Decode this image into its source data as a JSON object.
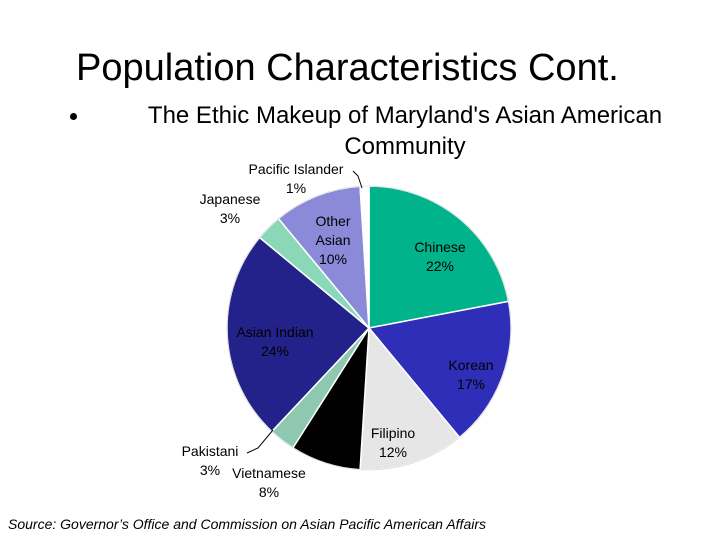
{
  "slide": {
    "title": "Population Characteristics Cont.",
    "bullet": "The Ethic Makeup of Maryland's Asian American Community",
    "source": "Source: Governor’s Office and Commission on Asian Pacific American Affairs"
  },
  "chart_data": {
    "type": "pie",
    "title": "",
    "start_angle_deg": 0,
    "direction": "clockwise",
    "slices": [
      {
        "name": "Chinese",
        "value": 22,
        "label_pct": "22%",
        "color": "#00b38a",
        "label_color": "#000000"
      },
      {
        "name": "Korean",
        "value": 17,
        "label_pct": "17%",
        "color": "#2e2eb8",
        "label_color": "#000000"
      },
      {
        "name": "Filipino",
        "value": 12,
        "label_pct": "12%",
        "color": "#e6e6e6",
        "label_color": "#000000"
      },
      {
        "name": "Vietnamese",
        "value": 8,
        "label_pct": "8%",
        "color": "#000000",
        "label_color": "#000000"
      },
      {
        "name": "Pakistani",
        "value": 3,
        "label_pct": "3%",
        "color": "#8fc8b0",
        "label_color": "#000000"
      },
      {
        "name": "Asian Indian",
        "value": 24,
        "label_pct": "24%",
        "color": "#22228a",
        "label_color": "#000000"
      },
      {
        "name": "Japanese",
        "value": 3,
        "label_pct": "3%",
        "color": "#8ad8b8",
        "label_color": "#000000"
      },
      {
        "name": "Other Asian",
        "value": 10,
        "label_pct": "10%",
        "color": "#8a8ad8",
        "label_color": "#000000"
      },
      {
        "name": "Pacific Islander",
        "value": 1,
        "label_pct": "1%",
        "color": "#ffffff",
        "label_color": "#000000"
      }
    ]
  }
}
